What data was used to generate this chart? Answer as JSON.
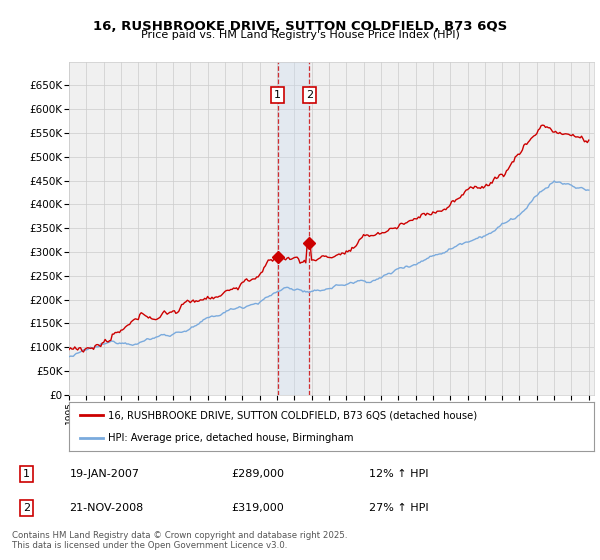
{
  "title": "16, RUSHBROOKE DRIVE, SUTTON COLDFIELD, B73 6QS",
  "subtitle": "Price paid vs. HM Land Registry's House Price Index (HPI)",
  "legend_line1": "16, RUSHBROOKE DRIVE, SUTTON COLDFIELD, B73 6QS (detached house)",
  "legend_line2": "HPI: Average price, detached house, Birmingham",
  "transaction1_date": "19-JAN-2007",
  "transaction1_price": "£289,000",
  "transaction1_hpi": "12% ↑ HPI",
  "transaction2_date": "21-NOV-2008",
  "transaction2_price": "£319,000",
  "transaction2_hpi": "27% ↑ HPI",
  "footer": "Contains HM Land Registry data © Crown copyright and database right 2025.\nThis data is licensed under the Open Government Licence v3.0.",
  "red_color": "#cc0000",
  "blue_color": "#7aaadd",
  "grid_color": "#cccccc",
  "shading_color": "#ccddf0",
  "background_color": "#ffffff",
  "plot_bg_color": "#f0f0f0",
  "ylim": [
    0,
    700000
  ],
  "ytick_values": [
    0,
    50000,
    100000,
    150000,
    200000,
    250000,
    300000,
    350000,
    400000,
    450000,
    500000,
    550000,
    600000,
    650000
  ],
  "ytick_labels": [
    "£0",
    "£50K",
    "£100K",
    "£150K",
    "£200K",
    "£250K",
    "£300K",
    "£350K",
    "£400K",
    "£450K",
    "£500K",
    "£550K",
    "£600K",
    "£650K"
  ],
  "t1_year": 2007.04,
  "t2_year": 2008.87,
  "t1_price": 289000,
  "t2_price": 319000
}
